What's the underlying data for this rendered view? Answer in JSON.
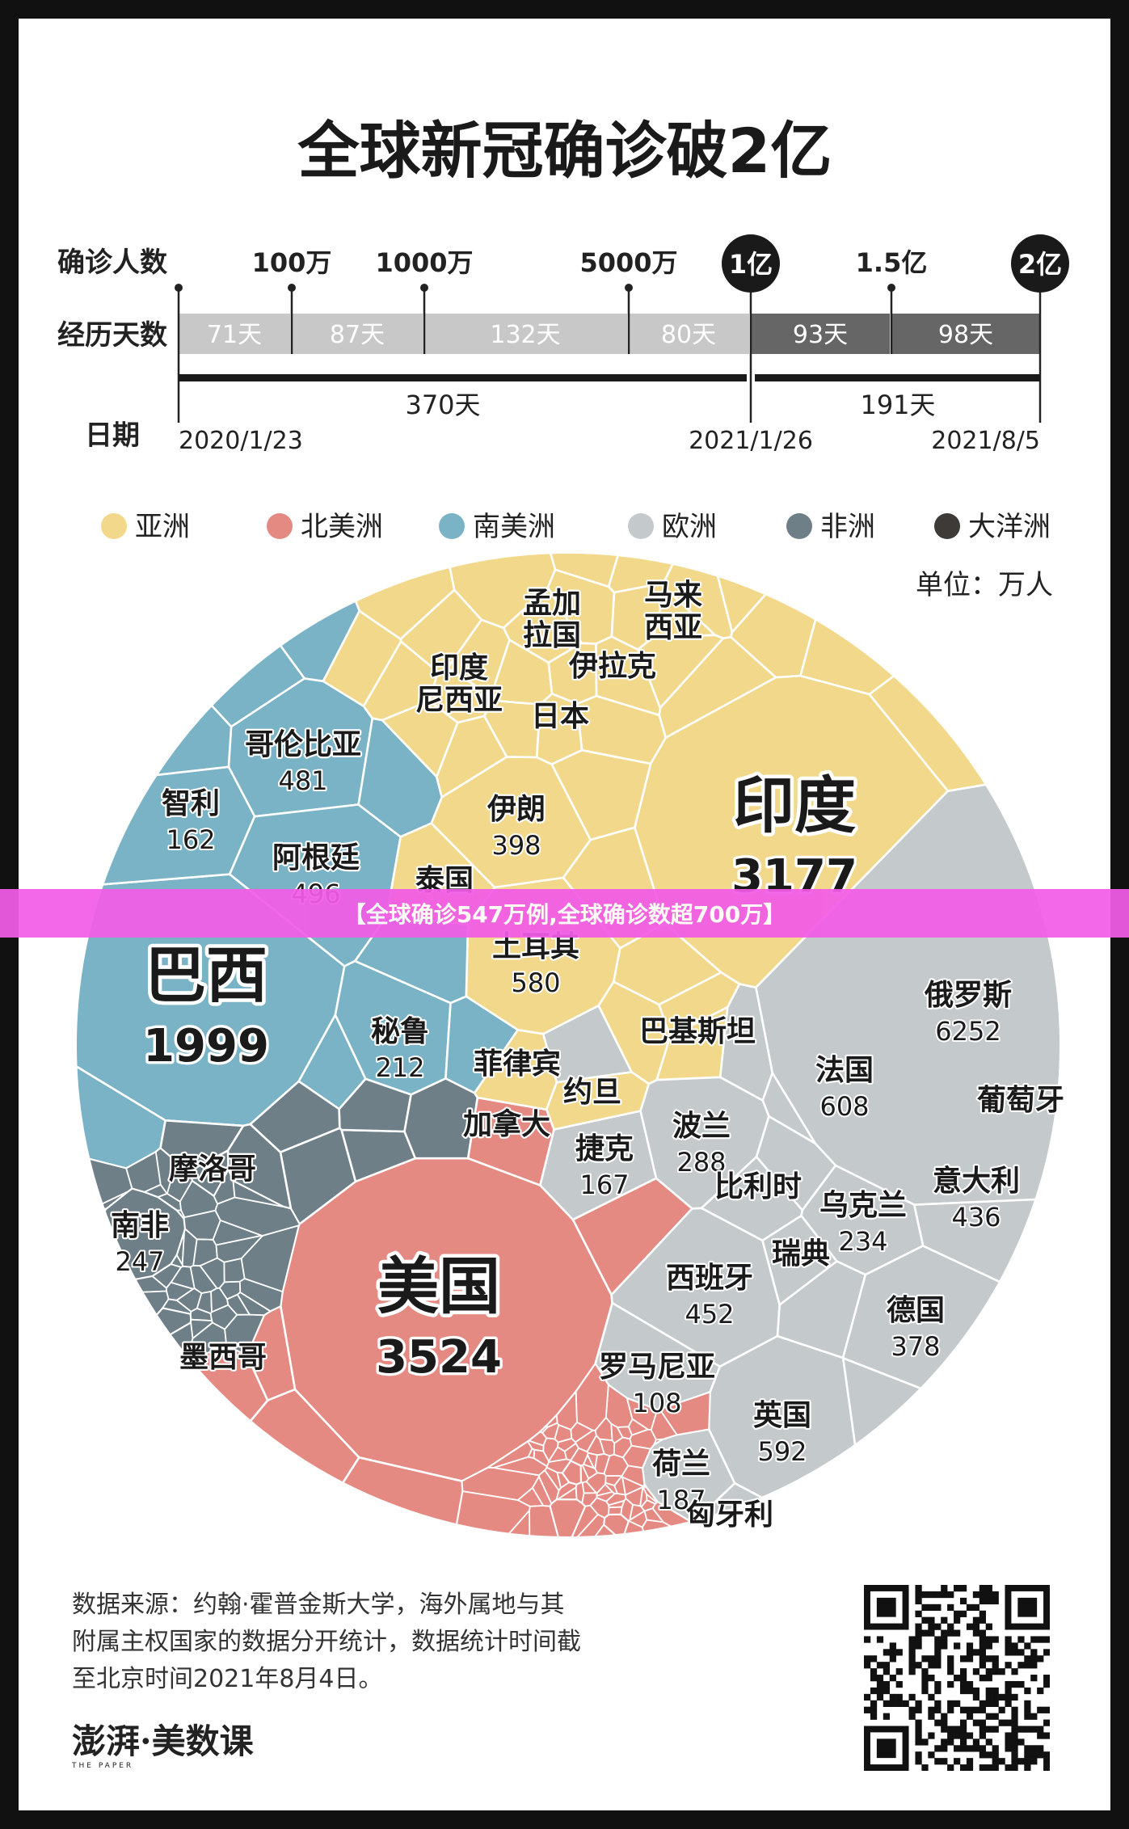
{
  "title": "全球新冠确诊破2亿",
  "timeline": {
    "row_labels": {
      "cases": "确诊人数",
      "days": "经历天数",
      "date": "日期"
    },
    "milestones": [
      "100万",
      "1000万",
      "5000万",
      "1亿",
      "1.5亿",
      "2亿"
    ],
    "segment_days": [
      "71天",
      "87天",
      "132天",
      "80天",
      "93天",
      "98天"
    ],
    "totals": [
      "370天",
      "191天"
    ],
    "dates": [
      "2020/1/23",
      "2021/1/26",
      "2021/8/5"
    ]
  },
  "legend": [
    {
      "name": "亚洲",
      "color": "#f2d88a"
    },
    {
      "name": "北美洲",
      "color": "#e58a82"
    },
    {
      "name": "南美洲",
      "color": "#7ab3c6"
    },
    {
      "name": "欧洲",
      "color": "#c4c9cc"
    },
    {
      "name": "非洲",
      "color": "#6e7f87"
    },
    {
      "name": "大洋洲",
      "color": "#3d3a38"
    }
  ],
  "unit": "单位：万人",
  "chart_data": {
    "type": "voronoi-treemap",
    "title": "全球新冠确诊破2亿",
    "unit": "万人",
    "countries": [
      {
        "name": "印度",
        "value": 3177,
        "continent": "亚洲"
      },
      {
        "name": "伊朗",
        "value": 398,
        "continent": "亚洲"
      },
      {
        "name": "土耳其",
        "value": 580,
        "continent": "亚洲"
      },
      {
        "name": "印度尼西亚",
        "value": null,
        "continent": "亚洲"
      },
      {
        "name": "孟加拉国",
        "value": null,
        "continent": "亚洲"
      },
      {
        "name": "马来西亚",
        "value": null,
        "continent": "亚洲"
      },
      {
        "name": "伊拉克",
        "value": null,
        "continent": "亚洲"
      },
      {
        "name": "日本",
        "value": null,
        "continent": "亚洲"
      },
      {
        "name": "泰国",
        "value": null,
        "continent": "亚洲"
      },
      {
        "name": "巴基斯坦",
        "value": null,
        "continent": "亚洲"
      },
      {
        "name": "菲律宾",
        "value": null,
        "continent": "亚洲"
      },
      {
        "name": "约旦",
        "value": null,
        "continent": "亚洲"
      },
      {
        "name": "美国",
        "value": 3524,
        "continent": "北美洲"
      },
      {
        "name": "加拿大",
        "value": null,
        "continent": "北美洲"
      },
      {
        "name": "墨西哥",
        "value": null,
        "continent": "北美洲"
      },
      {
        "name": "巴西",
        "value": 1999,
        "continent": "南美洲"
      },
      {
        "name": "哥伦比亚",
        "value": 481,
        "continent": "南美洲"
      },
      {
        "name": "智利",
        "value": 162,
        "continent": "南美洲"
      },
      {
        "name": "阿根廷",
        "value": 496,
        "continent": "南美洲"
      },
      {
        "name": "秘鲁",
        "value": 212,
        "continent": "南美洲"
      },
      {
        "name": "俄罗斯",
        "value": 6252,
        "continent": "欧洲"
      },
      {
        "name": "法国",
        "value": 608,
        "continent": "欧洲"
      },
      {
        "name": "葡萄牙",
        "value": null,
        "continent": "欧洲"
      },
      {
        "name": "波兰",
        "value": 288,
        "continent": "欧洲"
      },
      {
        "name": "捷克",
        "value": 167,
        "continent": "欧洲"
      },
      {
        "name": "意大利",
        "value": 436,
        "continent": "欧洲"
      },
      {
        "name": "比利时",
        "value": null,
        "continent": "欧洲"
      },
      {
        "name": "乌克兰",
        "value": 234,
        "continent": "欧洲"
      },
      {
        "name": "西班牙",
        "value": 452,
        "continent": "欧洲"
      },
      {
        "name": "瑞典",
        "value": null,
        "continent": "欧洲"
      },
      {
        "name": "德国",
        "value": 378,
        "continent": "欧洲"
      },
      {
        "name": "罗马尼亚",
        "value": 108,
        "continent": "欧洲"
      },
      {
        "name": "英国",
        "value": 592,
        "continent": "欧洲"
      },
      {
        "name": "荷兰",
        "value": 187,
        "continent": "欧洲"
      },
      {
        "name": "匈牙利",
        "value": null,
        "continent": "欧洲"
      },
      {
        "name": "南非",
        "value": 247,
        "continent": "非洲"
      },
      {
        "name": "摩洛哥",
        "value": null,
        "continent": "非洲"
      }
    ]
  },
  "banner": "【全球确诊547万例,全球确诊数超700万】",
  "source_lines": [
    "数据来源：约翰·霍普金斯大学，海外属地与其",
    "附属主权国家的数据分开统计，数据统计时间截",
    "至北京时间2021年8月4日。"
  ],
  "brand": "澎湃·美数课",
  "brand_sub": "THE PAPER"
}
